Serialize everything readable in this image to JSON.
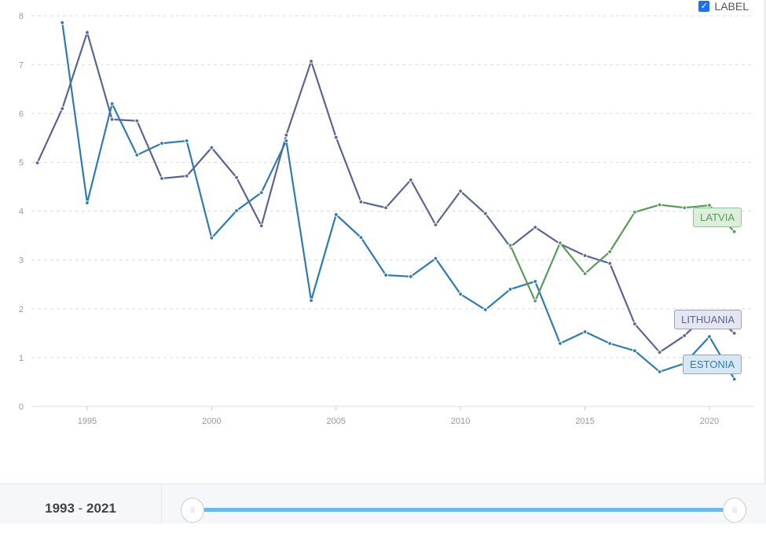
{
  "label_toggle": {
    "text": "LABEL",
    "checked": true
  },
  "range": {
    "start": "1993",
    "sep": " - ",
    "end": "2021"
  },
  "chart_data": {
    "type": "line",
    "title": "",
    "xlabel": "",
    "ylabel": "",
    "xlim": [
      1993,
      2021
    ],
    "ylim": [
      0,
      8
    ],
    "xticks": [
      1995,
      2000,
      2005,
      2010,
      2015,
      2020
    ],
    "yticks": [
      0,
      1,
      2,
      3,
      4,
      5,
      6,
      7,
      8
    ],
    "grid": true,
    "series": [
      {
        "name": "LITHUANIA",
        "color": "#5b6591",
        "label_bg": "#e6e6f0",
        "start": 1993,
        "values": [
          4.99,
          6.1,
          7.66,
          5.88,
          5.85,
          4.67,
          4.72,
          5.3,
          4.69,
          3.7,
          5.56,
          7.07,
          5.51,
          4.19,
          4.07,
          4.64,
          3.72,
          4.41,
          3.95,
          3.27,
          3.67,
          3.33,
          3.09,
          2.93,
          1.69,
          1.11,
          1.45,
          1.94,
          1.5
        ]
      },
      {
        "name": "ESTONIA",
        "color": "#2e7bb0",
        "label_bg": "#d6e8f5",
        "start": 1994,
        "values": [
          7.86,
          4.17,
          6.2,
          5.15,
          5.39,
          5.44,
          3.45,
          4.01,
          4.38,
          5.44,
          2.17,
          3.93,
          3.46,
          2.69,
          2.66,
          3.03,
          2.3,
          1.98,
          2.4,
          2.56,
          1.29,
          1.53,
          1.29,
          1.14,
          0.71,
          0.88,
          1.43,
          0.56
        ]
      },
      {
        "name": "LATVIA",
        "color": "#5a9a5a",
        "label_bg": "#ddeedd",
        "start": 2012,
        "values": [
          3.3,
          2.16,
          3.35,
          2.72,
          3.17,
          3.98,
          4.13,
          4.07,
          4.12,
          3.58
        ]
      }
    ]
  }
}
